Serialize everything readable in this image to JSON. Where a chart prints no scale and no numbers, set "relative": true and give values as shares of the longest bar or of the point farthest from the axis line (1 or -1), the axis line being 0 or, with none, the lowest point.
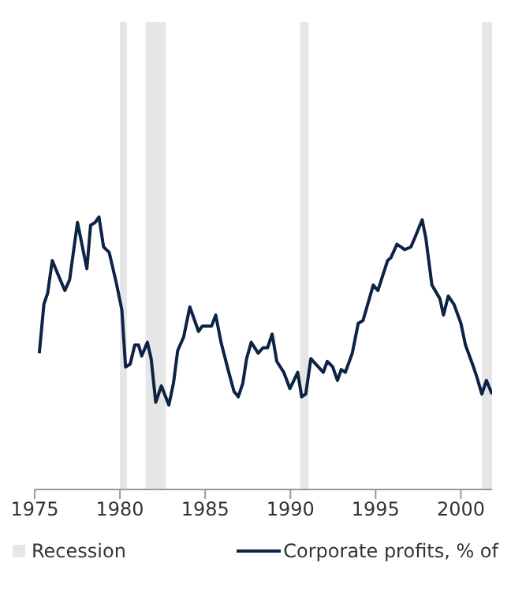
{
  "chart_data": {
    "type": "line",
    "relative": true,
    "x": [
      1975.27,
      1975.54,
      1975.76,
      1976.03,
      1976.36,
      1976.77,
      1977.05,
      1977.51,
      1978.06,
      1978.28,
      1978.55,
      1978.77,
      1979.04,
      1979.37,
      1979.78,
      1980.11,
      1980.33,
      1980.6,
      1980.87,
      1981.09,
      1981.28,
      1981.61,
      1981.83,
      1982.1,
      1982.43,
      1982.87,
      1983.14,
      1983.39,
      1983.74,
      1984.1,
      1984.61,
      1984.84,
      1985.38,
      1985.62,
      1985.93,
      1986.34,
      1986.69,
      1986.94,
      1987.21,
      1987.43,
      1987.7,
      1988.11,
      1988.39,
      1988.66,
      1988.93,
      1989.2,
      1989.61,
      1989.97,
      1990.43,
      1990.66,
      1990.9,
      1991.2,
      1991.93,
      1992.16,
      1992.48,
      1992.76,
      1992.98,
      1993.22,
      1993.63,
      1993.98,
      1994.26,
      1994.86,
      1995.13,
      1995.7,
      1995.89,
      1996.25,
      1996.71,
      1997.07,
      1997.34,
      1997.73,
      1997.95,
      1998.3,
      1998.77,
      1998.98,
      1999.26,
      1999.59,
      2000.0,
      2000.27,
      2000.68,
      2000.95,
      2001.23,
      2001.5,
      2001.83
    ],
    "series": [
      {
        "name": "Corporate profits, % of",
        "color": "#0d2346",
        "values": [
          0.5,
          0.68,
          0.72,
          0.84,
          0.79,
          0.73,
          0.77,
          0.98,
          0.81,
          0.97,
          0.98,
          1,
          0.89,
          0.87,
          0.76,
          0.66,
          0.45,
          0.46,
          0.53,
          0.53,
          0.49,
          0.54,
          0.48,
          0.32,
          0.38,
          0.31,
          0.39,
          0.51,
          0.56,
          0.67,
          0.58,
          0.6,
          0.6,
          0.64,
          0.54,
          0.44,
          0.36,
          0.34,
          0.39,
          0.48,
          0.54,
          0.5,
          0.52,
          0.52,
          0.57,
          0.47,
          0.43,
          0.37,
          0.43,
          0.34,
          0.35,
          0.48,
          0.43,
          0.47,
          0.45,
          0.4,
          0.44,
          0.43,
          0.5,
          0.61,
          0.62,
          0.75,
          0.73,
          0.84,
          0.85,
          0.9,
          0.88,
          0.89,
          0.93,
          0.99,
          0.92,
          0.75,
          0.7,
          0.64,
          0.71,
          0.68,
          0.61,
          0.53,
          0.46,
          0.41,
          0.35,
          0.4,
          0.35
        ]
      }
    ],
    "xlim": [
      1975,
      2001.83
    ],
    "xticks": [
      1975,
      1980,
      1985,
      1990,
      1995,
      2000
    ],
    "tick_labels": "x",
    "legend": "bottom",
    "marker": "none",
    "line_style": "solid",
    "bands": [
      {
        "axis": "x",
        "from": 1980.0,
        "to": 1980.41,
        "label": "Recession",
        "color": "#e6e6e6"
      },
      {
        "axis": "x",
        "from": 1981.5,
        "to": 1982.7,
        "color": "#e6e6e6"
      },
      {
        "axis": "x",
        "from": 1990.57,
        "to": 1991.07,
        "color": "#e6e6e6"
      },
      {
        "axis": "x",
        "from": 2001.23,
        "to": 2001.83,
        "color": "#e6e6e6"
      }
    ]
  }
}
